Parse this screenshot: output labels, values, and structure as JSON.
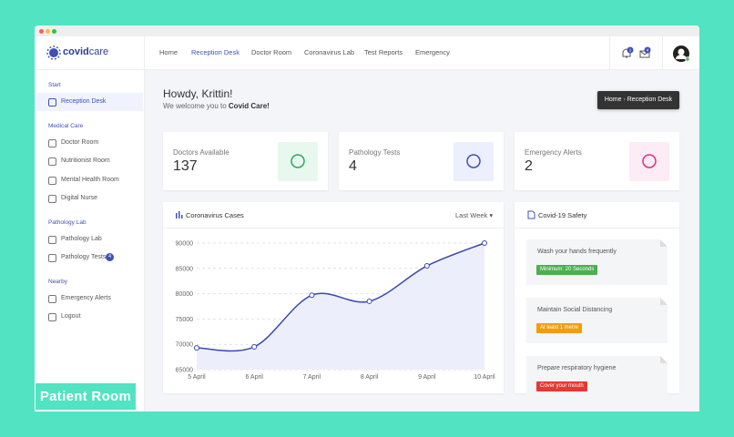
{
  "brand": {
    "part1": "covid",
    "part2": "care"
  },
  "nav": [
    "Home",
    "Reception Desk",
    "Doctor Room",
    "Coronavirus Lab",
    "Test Reports",
    "Emergency"
  ],
  "notifications": {
    "bell": 1,
    "mail": 4
  },
  "sidebar": [
    {
      "section": "Start",
      "items": [
        {
          "label": "Reception Desk"
        }
      ]
    },
    {
      "section": "Medical Care",
      "items": [
        {
          "label": "Doctor Room"
        },
        {
          "label": "Nutritionist Room"
        },
        {
          "label": "Mental Health Room"
        },
        {
          "label": "Digital Nurse"
        }
      ]
    },
    {
      "section": "Pathology Lab",
      "items": [
        {
          "label": "Pathology Lab"
        },
        {
          "label": "Pathology Tests",
          "badge": 4
        }
      ]
    },
    {
      "section": "Nearby",
      "items": [
        {
          "label": "Emergency Alerts"
        },
        {
          "label": "Logout"
        }
      ]
    }
  ],
  "greeting": {
    "title": "Howdy, Krittin!",
    "welcome": "We welcome you to",
    "brand": "Covid Care!"
  },
  "breadcrumb": [
    "Home",
    "Reception Desk"
  ],
  "stats": [
    {
      "label": "Doctors Available",
      "value": 137
    },
    {
      "label": "Pathology Tests",
      "value": 4
    },
    {
      "label": "Emergency Alerts",
      "value": 2
    }
  ],
  "chart_data": {
    "type": "line",
    "title": "Coronavirus Cases",
    "filter": "Last Week",
    "categories": [
      "5 April",
      "6 April",
      "7 April",
      "8 April",
      "9 April",
      "10 April"
    ],
    "values": [
      69300,
      69500,
      79700,
      78500,
      85500,
      90000
    ],
    "color": "#3949ab",
    "area_color": "#eceefb",
    "ylim": [
      65000,
      90000
    ],
    "yticks": [
      65000,
      70000,
      75000,
      80000,
      85000,
      90000
    ],
    "grid": true,
    "smooth": true
  },
  "safety": {
    "title": "Covid-19 Safety",
    "items": [
      {
        "text": "Wash your hands frequently",
        "tag": "Minimum: 20 Seconds",
        "color": "#4caf50"
      },
      {
        "text": "Maintain Social Distancing",
        "tag": "At least 1 metre",
        "color": "#f39c12"
      },
      {
        "text": "Prepare respiratory hygiene",
        "tag": "Cover your mouth",
        "color": "#e53935"
      }
    ]
  },
  "overlay": "Patient Room"
}
